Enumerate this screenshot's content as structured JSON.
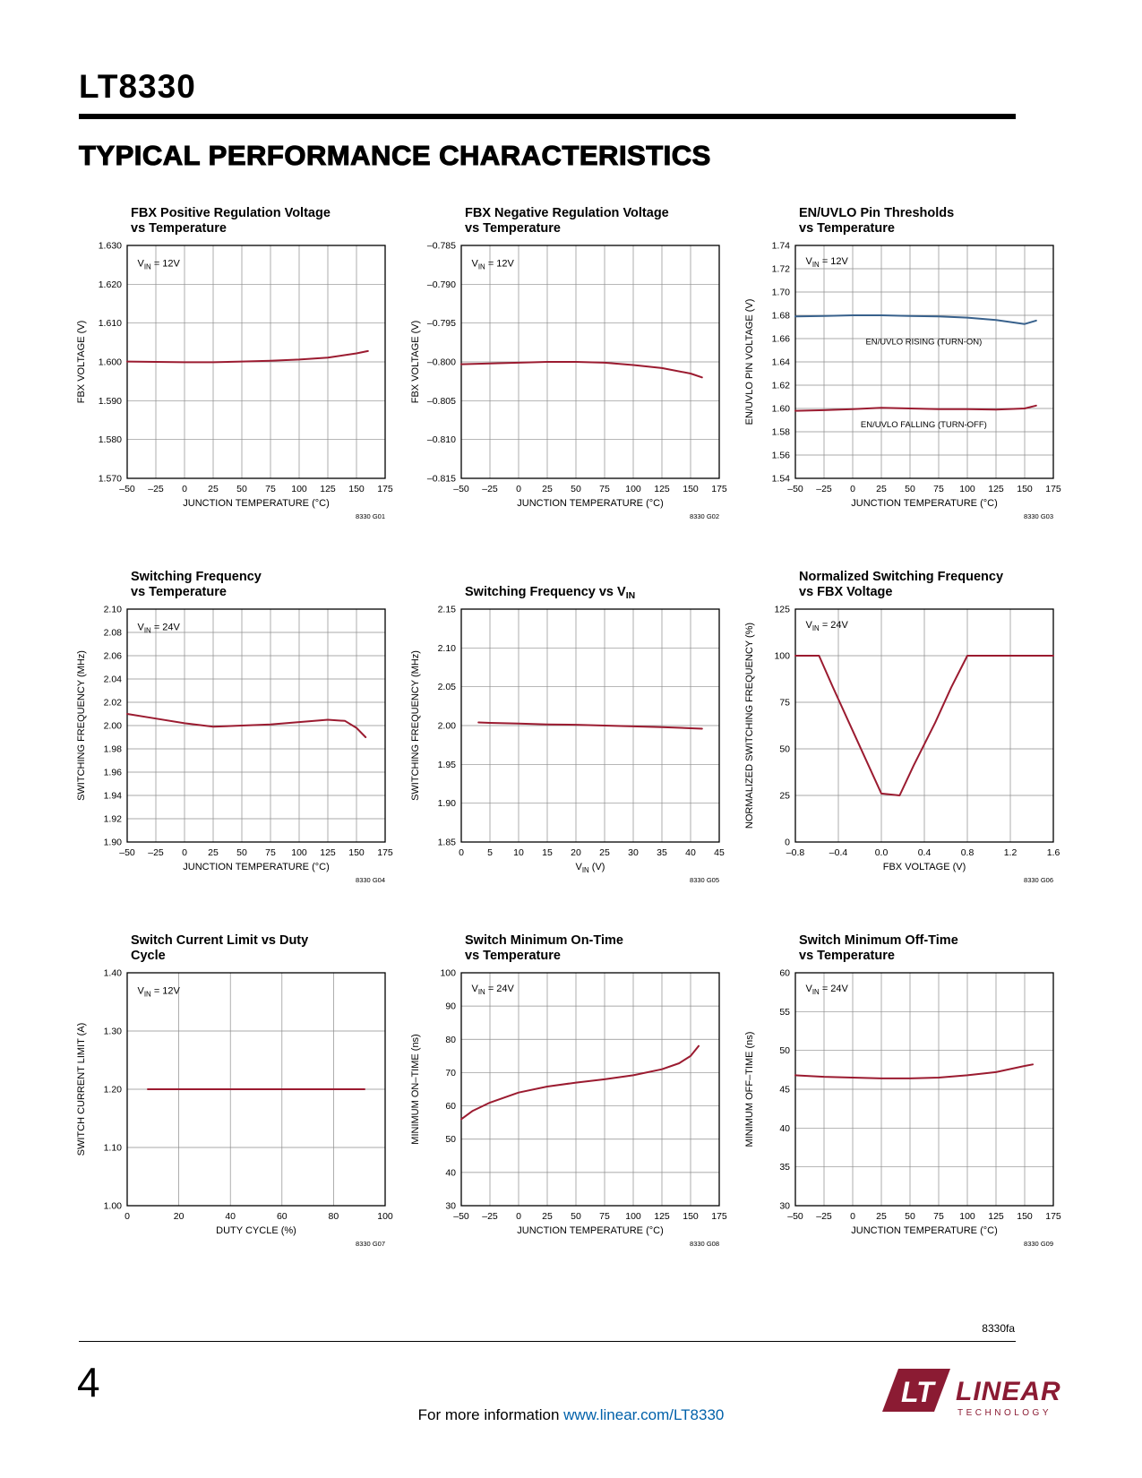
{
  "page": {
    "part_number": "LT8330",
    "section_title": "TYPICAL PERFORMANCE CHARACTERISTICS",
    "doc_code": "8330fa",
    "page_number": "4",
    "footer_prefix": "For more information ",
    "footer_link": "www.linear.com/LT8330",
    "logo": {
      "mark": "LT",
      "name": "LINEAR",
      "sub": "TECHNOLOGY"
    }
  },
  "chart_defaults": {
    "line_color": "#9B1B30",
    "secondary_line_color": "#38618C",
    "grid_color": "#8C8C8C",
    "axis_color": "#000000"
  },
  "chart_data": [
    {
      "type": "line",
      "graph_id": "8330 G01",
      "title_lines": [
        "FBX Positive Regulation Voltage",
        "vs Temperature"
      ],
      "xlabel": "JUNCTION TEMPERATURE (°C)",
      "ylabel": "FBX VOLTAGE (V)",
      "xlim": [
        -50,
        175
      ],
      "ylim": [
        1.57,
        1.63
      ],
      "xticks": [
        -50,
        -25,
        0,
        25,
        50,
        75,
        100,
        125,
        150,
        175
      ],
      "xtick_labels": [
        "–50",
        "–25",
        "0",
        "25",
        "50",
        "75",
        "100",
        "125",
        "150",
        "175"
      ],
      "yticks": [
        1.57,
        1.58,
        1.59,
        1.6,
        1.61,
        1.62,
        1.63
      ],
      "ytick_labels": [
        "1.570",
        "1.580",
        "1.590",
        "1.600",
        "1.610",
        "1.620",
        "1.630"
      ],
      "annotation": {
        "text": "V_IN_ = 12V",
        "fx": 0.04,
        "fy": 0.09
      },
      "series": [
        {
          "name": "FBX positive regulation voltage",
          "color": "#9B1B30",
          "x": [
            -50,
            -25,
            0,
            25,
            50,
            75,
            100,
            125,
            150,
            160
          ],
          "y": [
            1.6001,
            1.6,
            1.5999,
            1.5999,
            1.6001,
            1.6003,
            1.6006,
            1.6011,
            1.6022,
            1.6028
          ]
        }
      ],
      "labels": []
    },
    {
      "type": "line",
      "graph_id": "8330 G02",
      "title_lines": [
        "FBX Negative Regulation Voltage",
        "vs Temperature"
      ],
      "xlabel": "JUNCTION TEMPERATURE (°C)",
      "ylabel": "FBX VOLTAGE (V)",
      "xlim": [
        -50,
        175
      ],
      "ylim": [
        -0.815,
        -0.785
      ],
      "xticks": [
        -50,
        -25,
        0,
        25,
        50,
        75,
        100,
        125,
        150,
        175
      ],
      "xtick_labels": [
        "–50",
        "–25",
        "0",
        "25",
        "50",
        "75",
        "100",
        "125",
        "150",
        "175"
      ],
      "yticks": [
        -0.815,
        -0.81,
        -0.805,
        -0.8,
        -0.795,
        -0.79,
        -0.785
      ],
      "ytick_labels": [
        "–0.815",
        "–0.810",
        "–0.805",
        "–0.800",
        "–0.795",
        "–0.790",
        "–0.785"
      ],
      "annotation": {
        "text": "V_IN_ = 12V",
        "fx": 0.04,
        "fy": 0.09
      },
      "series": [
        {
          "name": "FBX negative regulation voltage",
          "color": "#9B1B30",
          "x": [
            -50,
            -25,
            0,
            25,
            50,
            75,
            100,
            125,
            150,
            160
          ],
          "y": [
            -0.8003,
            -0.8002,
            -0.8001,
            -0.8,
            -0.8,
            -0.8001,
            -0.8004,
            -0.8008,
            -0.8015,
            -0.802
          ]
        }
      ],
      "labels": []
    },
    {
      "type": "line",
      "graph_id": "8330 G03",
      "title_lines": [
        "EN/UVLO Pin Thresholds",
        "vs Temperature"
      ],
      "xlabel": "JUNCTION TEMPERATURE (°C)",
      "ylabel": "EN/UVLO PIN VOLTAGE (V)",
      "xlim": [
        -50,
        175
      ],
      "ylim": [
        1.54,
        1.74
      ],
      "xticks": [
        -50,
        -25,
        0,
        25,
        50,
        75,
        100,
        125,
        150,
        175
      ],
      "xtick_labels": [
        "–50",
        "–25",
        "0",
        "25",
        "50",
        "75",
        "100",
        "125",
        "150",
        "175"
      ],
      "yticks": [
        1.54,
        1.56,
        1.58,
        1.6,
        1.62,
        1.64,
        1.66,
        1.68,
        1.7,
        1.72,
        1.74
      ],
      "ytick_labels": [
        "1.54",
        "1.56",
        "1.58",
        "1.60",
        "1.62",
        "1.64",
        "1.66",
        "1.68",
        "1.70",
        "1.72",
        "1.74"
      ],
      "annotation": {
        "text": "V_IN_ = 12V",
        "fx": 0.04,
        "fy": 0.08
      },
      "series": [
        {
          "name": "EN/UVLO rising (turn-on)",
          "color": "#38618C",
          "x": [
            -50,
            -25,
            0,
            25,
            50,
            75,
            100,
            125,
            150,
            160
          ],
          "y": [
            1.679,
            1.6795,
            1.68,
            1.68,
            1.6795,
            1.679,
            1.678,
            1.676,
            1.6725,
            1.6755
          ]
        },
        {
          "name": "EN/UVLO falling (turn-off)",
          "color": "#9B1B30",
          "x": [
            -50,
            -25,
            0,
            25,
            50,
            75,
            100,
            125,
            150,
            160
          ],
          "y": [
            1.598,
            1.5985,
            1.5995,
            1.6005,
            1.6,
            1.5995,
            1.5995,
            1.599,
            1.6,
            1.6025
          ]
        }
      ],
      "labels": [
        {
          "text": "EN/UVLO RISING (TURN-ON)",
          "x": 62,
          "y": 1.655
        },
        {
          "text": "EN/UVLO FALLING (TURN-OFF)",
          "x": 62,
          "y": 1.584
        }
      ]
    },
    {
      "type": "line",
      "graph_id": "8330 G04",
      "title_lines": [
        "Switching Frequency",
        "vs Temperature"
      ],
      "xlabel": "JUNCTION TEMPERATURE (°C)",
      "ylabel": "SWITCHING FREQUENCY (MHz)",
      "xlim": [
        -50,
        175
      ],
      "ylim": [
        1.9,
        2.1
      ],
      "xticks": [
        -50,
        -25,
        0,
        25,
        50,
        75,
        100,
        125,
        150,
        175
      ],
      "xtick_labels": [
        "–50",
        "–25",
        "0",
        "25",
        "50",
        "75",
        "100",
        "125",
        "150",
        "175"
      ],
      "yticks": [
        1.9,
        1.92,
        1.94,
        1.96,
        1.98,
        2.0,
        2.02,
        2.04,
        2.06,
        2.08,
        2.1
      ],
      "ytick_labels": [
        "1.90",
        "1.92",
        "1.94",
        "1.96",
        "1.98",
        "2.00",
        "2.02",
        "2.04",
        "2.06",
        "2.08",
        "2.10"
      ],
      "annotation": {
        "text": "V_IN_ = 24V",
        "fx": 0.04,
        "fy": 0.09
      },
      "series": [
        {
          "name": "switching frequency",
          "color": "#9B1B30",
          "x": [
            -50,
            -25,
            0,
            25,
            50,
            75,
            100,
            125,
            140,
            150,
            158
          ],
          "y": [
            2.01,
            2.006,
            2.002,
            1.999,
            2.0,
            2.001,
            2.003,
            2.005,
            2.004,
            1.998,
            1.99
          ]
        }
      ],
      "labels": []
    },
    {
      "type": "line",
      "graph_id": "8330 G05",
      "title_lines": [
        "Switching Frequency vs V_IN_"
      ],
      "xlabel": "V_IN_ (V)",
      "ylabel": "SWITCHING FREQUENCY (MHz)",
      "xlim": [
        0,
        45
      ],
      "ylim": [
        1.85,
        2.15
      ],
      "xticks": [
        0,
        5,
        10,
        15,
        20,
        25,
        30,
        35,
        40,
        45
      ],
      "xtick_labels": [
        "0",
        "5",
        "10",
        "15",
        "20",
        "25",
        "30",
        "35",
        "40",
        "45"
      ],
      "yticks": [
        1.85,
        1.9,
        1.95,
        2.0,
        2.05,
        2.1,
        2.15
      ],
      "ytick_labels": [
        "1.85",
        "1.90",
        "1.95",
        "2.00",
        "2.05",
        "2.10",
        "2.15"
      ],
      "series": [
        {
          "name": "switching frequency",
          "color": "#9B1B30",
          "x": [
            3,
            5,
            10,
            15,
            20,
            25,
            30,
            35,
            40,
            42
          ],
          "y": [
            2.004,
            2.0035,
            2.0025,
            2.0015,
            2.001,
            2.0,
            1.999,
            1.998,
            1.9965,
            1.996
          ]
        }
      ],
      "labels": []
    },
    {
      "type": "line",
      "graph_id": "8330 G06",
      "title_lines": [
        "Normalized Switching Frequency",
        "vs FBX Voltage"
      ],
      "xlabel": "FBX VOLTAGE (V)",
      "ylabel": "NORMALIZED SWITCHING FREQUENCY (%)",
      "xlim": [
        -0.8,
        1.6
      ],
      "ylim": [
        0,
        125
      ],
      "xticks": [
        -0.8,
        -0.4,
        0.0,
        0.4,
        0.8,
        1.2,
        1.6
      ],
      "xtick_labels": [
        "–0.8",
        "–0.4",
        "0.0",
        "0.4",
        "0.8",
        "1.2",
        "1.6"
      ],
      "yticks": [
        0,
        25,
        50,
        75,
        100,
        125
      ],
      "ytick_labels": [
        "0",
        "25",
        "50",
        "75",
        "100",
        "125"
      ],
      "annotation": {
        "text": "V_IN_ = 24V",
        "fx": 0.04,
        "fy": 0.08
      },
      "series": [
        {
          "name": "normalized switching frequency",
          "color": "#9B1B30",
          "x": [
            -0.8,
            -0.58,
            -0.45,
            -0.3,
            -0.15,
            0.0,
            0.17,
            0.3,
            0.5,
            0.65,
            0.8,
            1.2,
            1.6
          ],
          "y": [
            100,
            100,
            83,
            64,
            45,
            26,
            25,
            41,
            64,
            83,
            100,
            100,
            100
          ]
        }
      ],
      "labels": []
    },
    {
      "type": "line",
      "graph_id": "8330 G07",
      "title_lines": [
        "Switch Current Limit vs Duty",
        "Cycle"
      ],
      "xlabel": "DUTY CYCLE (%)",
      "ylabel": "SWITCH CURRENT LIMIT (A)",
      "xlim": [
        0,
        100
      ],
      "ylim": [
        1.0,
        1.4
      ],
      "xticks": [
        0,
        20,
        40,
        60,
        80,
        100
      ],
      "xtick_labels": [
        "0",
        "20",
        "40",
        "60",
        "80",
        "100"
      ],
      "yticks": [
        1.0,
        1.1,
        1.2,
        1.3,
        1.4
      ],
      "ytick_labels": [
        "1.00",
        "1.10",
        "1.20",
        "1.30",
        "1.40"
      ],
      "annotation": {
        "text": "V_IN_ = 12V",
        "fx": 0.04,
        "fy": 0.09
      },
      "series": [
        {
          "name": "switch current limit",
          "color": "#9B1B30",
          "x": [
            8,
            92
          ],
          "y": [
            1.2,
            1.2
          ]
        }
      ],
      "labels": []
    },
    {
      "type": "line",
      "graph_id": "8330 G08",
      "title_lines": [
        "Switch Minimum On-Time",
        "vs Temperature"
      ],
      "xlabel": "JUNCTION TEMPERATURE (°C)",
      "ylabel": "MINIMUM ON–TIME (ns)",
      "xlim": [
        -50,
        175
      ],
      "ylim": [
        30,
        100
      ],
      "xticks": [
        -50,
        -25,
        0,
        25,
        50,
        75,
        100,
        125,
        150,
        175
      ],
      "xtick_labels": [
        "–50",
        "–25",
        "0",
        "25",
        "50",
        "75",
        "100",
        "125",
        "150",
        "175"
      ],
      "yticks": [
        30,
        40,
        50,
        60,
        70,
        80,
        90,
        100
      ],
      "ytick_labels": [
        "30",
        "40",
        "50",
        "60",
        "70",
        "80",
        "90",
        "100"
      ],
      "annotation": {
        "text": "V_IN_ = 24V",
        "fx": 0.04,
        "fy": 0.08
      },
      "series": [
        {
          "name": "minimum on-time",
          "color": "#9B1B30",
          "x": [
            -50,
            -40,
            -25,
            0,
            25,
            50,
            75,
            100,
            125,
            140,
            150,
            157
          ],
          "y": [
            56,
            58.5,
            61,
            64,
            65.8,
            67,
            68,
            69.2,
            71,
            72.8,
            75,
            78
          ]
        }
      ],
      "labels": []
    },
    {
      "type": "line",
      "graph_id": "8330 G09",
      "title_lines": [
        "Switch Minimum Off-Time",
        "vs Temperature"
      ],
      "xlabel": "JUNCTION TEMPERATURE (°C)",
      "ylabel": "MINIMUM OFF–TIME (ns)",
      "xlim": [
        -50,
        175
      ],
      "ylim": [
        30,
        60
      ],
      "xticks": [
        -50,
        -25,
        0,
        25,
        50,
        75,
        100,
        125,
        150,
        175
      ],
      "xtick_labels": [
        "–50",
        "–25",
        "0",
        "25",
        "50",
        "75",
        "100",
        "125",
        "150",
        "175"
      ],
      "yticks": [
        30,
        35,
        40,
        45,
        50,
        55,
        60
      ],
      "ytick_labels": [
        "30",
        "35",
        "40",
        "45",
        "50",
        "55",
        "60"
      ],
      "annotation": {
        "text": "V_IN_ = 24V",
        "fx": 0.04,
        "fy": 0.08
      },
      "series": [
        {
          "name": "minimum off-time",
          "color": "#9B1B30",
          "x": [
            -50,
            -25,
            0,
            25,
            50,
            75,
            100,
            125,
            150,
            157
          ],
          "y": [
            46.8,
            46.6,
            46.5,
            46.4,
            46.4,
            46.5,
            46.8,
            47.2,
            48,
            48.2
          ]
        }
      ],
      "labels": []
    }
  ]
}
